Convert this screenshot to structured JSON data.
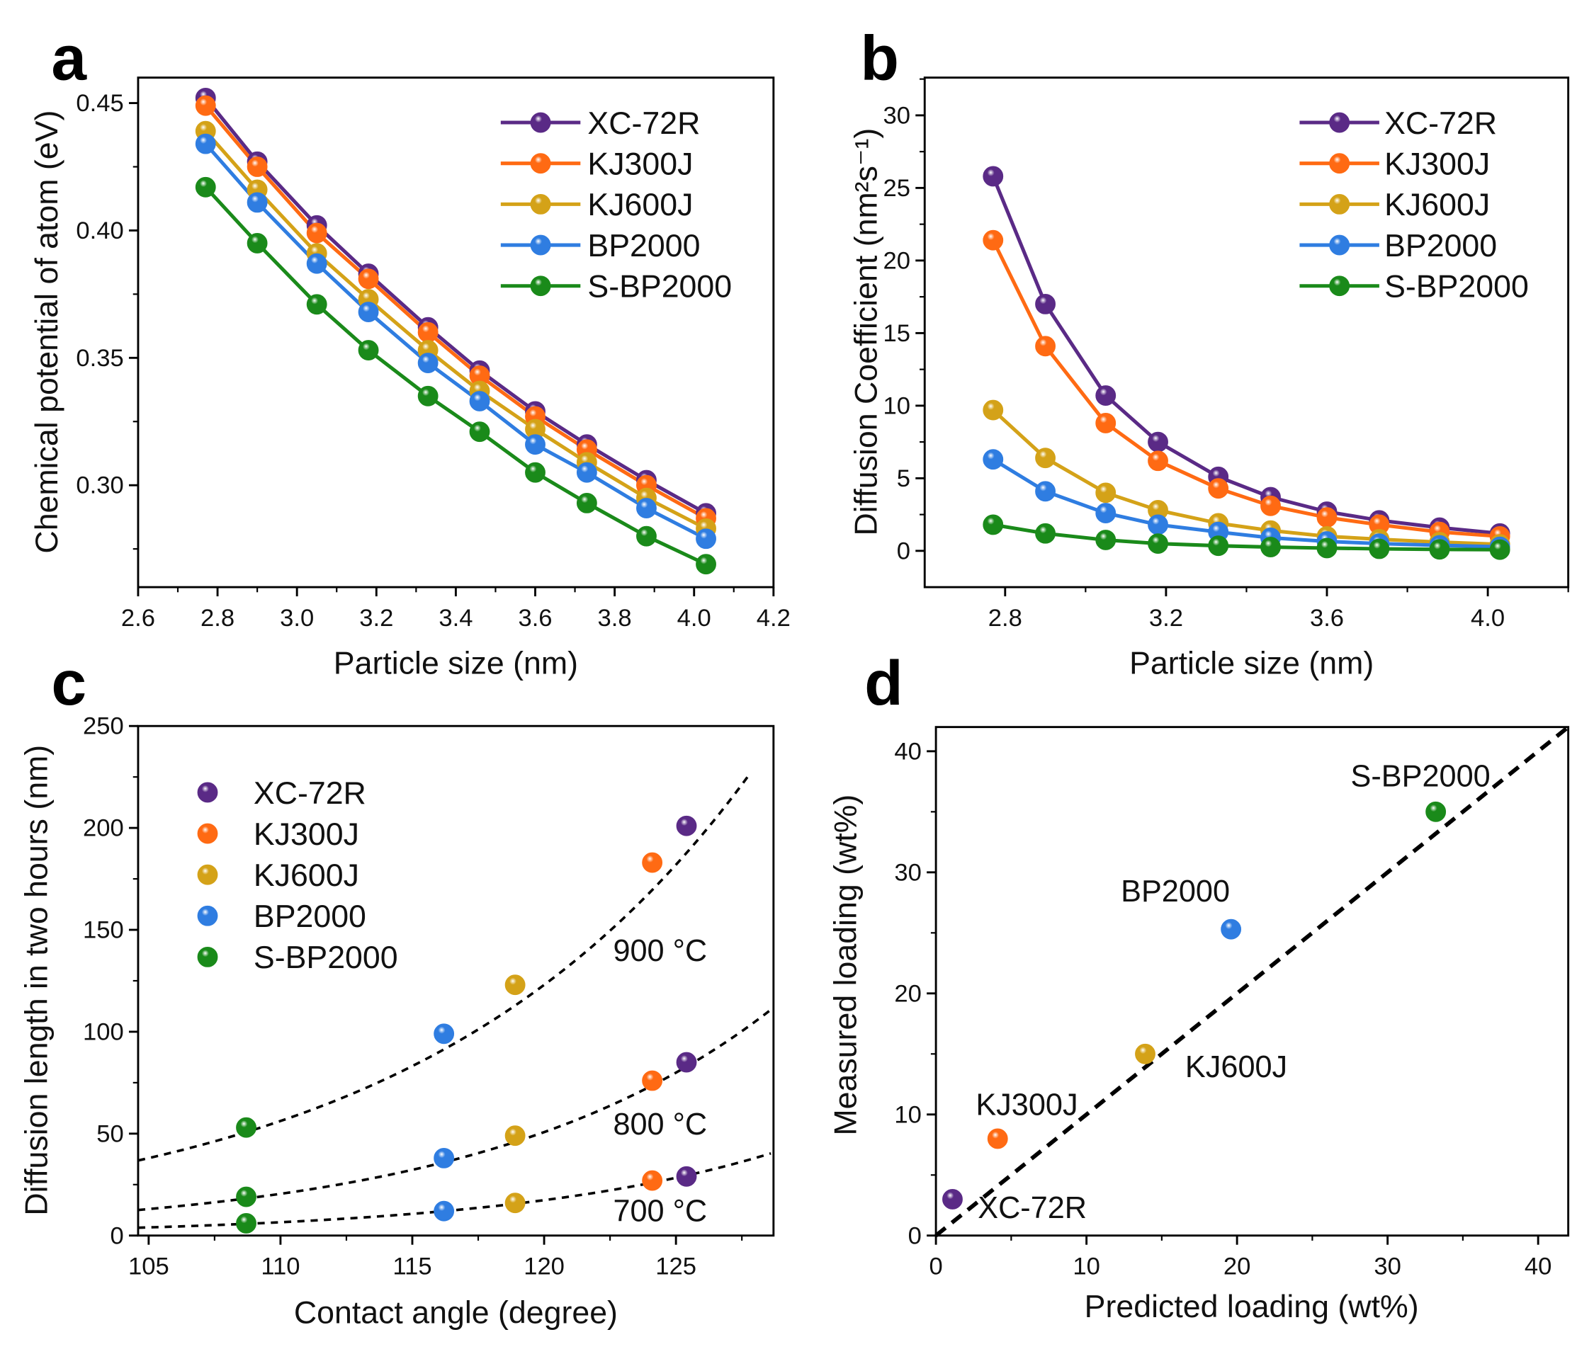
{
  "colors": {
    "XC-72R": "#5a2a86",
    "KJ300J": "#ff6a13",
    "KJ600J": "#d4a218",
    "BP2000": "#2f7de1",
    "S-BP2000": "#1a8a1a"
  },
  "chart_data": [
    {
      "panel": "a",
      "type": "line",
      "xlabel": "Particle size (nm)",
      "ylabel": "Chemical potential of atom (eV)",
      "xlim": [
        2.6,
        4.2
      ],
      "ylim": [
        0.26,
        0.46
      ],
      "xticks": [
        "2.6",
        "2.8",
        "3.0",
        "3.2",
        "3.4",
        "3.6",
        "3.8",
        "4.0",
        "4.2"
      ],
      "yticks": [
        "0.30",
        "0.35",
        "0.40",
        "0.45"
      ],
      "legend_position": "top-right",
      "x": [
        2.77,
        2.9,
        3.05,
        3.18,
        3.33,
        3.46,
        3.6,
        3.73,
        3.88,
        4.03
      ],
      "series": [
        {
          "name": "XC-72R",
          "values": [
            0.452,
            0.427,
            0.402,
            0.383,
            0.362,
            0.345,
            0.329,
            0.316,
            0.302,
            0.289
          ]
        },
        {
          "name": "KJ300J",
          "values": [
            0.449,
            0.425,
            0.399,
            0.381,
            0.36,
            0.343,
            0.327,
            0.314,
            0.3,
            0.287
          ]
        },
        {
          "name": "KJ600J",
          "values": [
            0.439,
            0.416,
            0.391,
            0.373,
            0.353,
            0.337,
            0.322,
            0.309,
            0.295,
            0.283
          ]
        },
        {
          "name": "BP2000",
          "values": [
            0.434,
            0.411,
            0.387,
            0.368,
            0.348,
            0.333,
            0.316,
            0.305,
            0.291,
            0.279
          ]
        },
        {
          "name": "S-BP2000",
          "values": [
            0.417,
            0.395,
            0.371,
            0.353,
            0.335,
            0.321,
            0.305,
            0.293,
            0.28,
            0.269
          ]
        }
      ]
    },
    {
      "panel": "b",
      "type": "line",
      "xlabel": "Particle size (nm)",
      "ylabel": "Diffusion Coefficient (nm²s⁻¹)",
      "xlim": [
        2.6,
        4.2
      ],
      "ylim": [
        -2.5,
        32.6
      ],
      "xticks": [
        "2.8",
        "3.2",
        "3.6",
        "4.0"
      ],
      "yticks": [
        "0",
        "5",
        "10",
        "15",
        "20",
        "25",
        "30"
      ],
      "legend_position": "top-right",
      "x": [
        2.77,
        2.9,
        3.05,
        3.18,
        3.33,
        3.46,
        3.6,
        3.73,
        3.88,
        4.03
      ],
      "series": [
        {
          "name": "XC-72R",
          "values": [
            25.8,
            17.0,
            10.7,
            7.5,
            5.1,
            3.7,
            2.7,
            2.1,
            1.6,
            1.2
          ]
        },
        {
          "name": "KJ300J",
          "values": [
            21.4,
            14.1,
            8.8,
            6.2,
            4.3,
            3.1,
            2.3,
            1.8,
            1.3,
            1.0
          ]
        },
        {
          "name": "KJ600J",
          "values": [
            9.7,
            6.4,
            4.0,
            2.8,
            1.9,
            1.4,
            1.0,
            0.8,
            0.6,
            0.45
          ]
        },
        {
          "name": "BP2000",
          "values": [
            6.3,
            4.1,
            2.6,
            1.8,
            1.3,
            0.9,
            0.65,
            0.5,
            0.38,
            0.28
          ]
        },
        {
          "name": "S-BP2000",
          "values": [
            1.8,
            1.2,
            0.75,
            0.5,
            0.35,
            0.26,
            0.19,
            0.14,
            0.1,
            0.08
          ]
        }
      ]
    },
    {
      "panel": "c",
      "type": "scatter",
      "xlabel": "Contact angle (degree)",
      "ylabel": "Diffusion length in two hours (nm)",
      "xlim": [
        104.6,
        128.7
      ],
      "ylim": [
        0,
        250
      ],
      "xticks": [
        "105",
        "110",
        "115",
        "120",
        "125"
      ],
      "yticks": [
        "0",
        "50",
        "100",
        "150",
        "200",
        "250"
      ],
      "legend_position": "top-left",
      "x": [
        108.7,
        116.2,
        118.9,
        124.1,
        125.4
      ],
      "series_names": [
        "S-BP2000",
        "BP2000",
        "KJ600J",
        "KJ300J",
        "XC-72R"
      ],
      "temperatures": [
        {
          "label": "900 °C",
          "values": [
            53,
            99,
            123,
            183,
            201
          ],
          "fit": {
            "a": 38,
            "k": 0.0783,
            "xmax": 127.9
          }
        },
        {
          "label": "800 °C",
          "values": [
            19,
            38,
            49,
            76,
            85
          ],
          "fit": {
            "a": 13,
            "k": 0.0908,
            "xmax": 128.7
          }
        },
        {
          "label": "700 °C",
          "values": [
            6,
            12,
            16,
            27,
            29
          ],
          "fit": {
            "a": 4,
            "k": 0.0979,
            "xmax": 128.7
          }
        }
      ],
      "legend": [
        "XC-72R",
        "KJ300J",
        "KJ600J",
        "BP2000",
        "S-BP2000"
      ]
    },
    {
      "panel": "d",
      "type": "scatter",
      "xlabel": "Predicted loading (wt%)",
      "ylabel": "Measured loading (wt%)",
      "xlim": [
        0,
        42
      ],
      "ylim": [
        0,
        42
      ],
      "xticks": [
        "0",
        "10",
        "20",
        "30",
        "40"
      ],
      "yticks": [
        "0",
        "10",
        "20",
        "30",
        "40"
      ],
      "reference_line": "y = x",
      "points": [
        {
          "name": "XC-72R",
          "x": 1.1,
          "y": 3.0
        },
        {
          "name": "KJ300J",
          "x": 4.1,
          "y": 8.0
        },
        {
          "name": "KJ600J",
          "x": 13.9,
          "y": 15.0
        },
        {
          "name": "BP2000",
          "x": 19.6,
          "y": 25.3
        },
        {
          "name": "S-BP2000",
          "x": 33.2,
          "y": 35.0
        }
      ]
    }
  ],
  "panel_letters": [
    "a",
    "b",
    "c",
    "d"
  ]
}
